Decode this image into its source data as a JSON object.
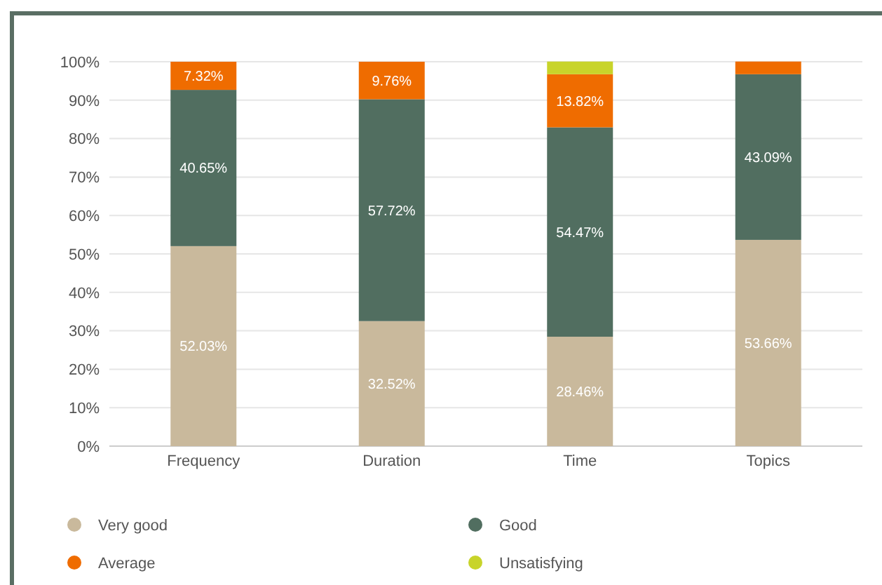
{
  "chart_data": {
    "type": "bar",
    "stacked": true,
    "categories": [
      "Frequency",
      "Duration",
      "Time",
      "Topics"
    ],
    "ylim": [
      0,
      100
    ],
    "yticks": [
      {
        "value": 0,
        "label": "0%"
      },
      {
        "value": 10,
        "label": "10%"
      },
      {
        "value": 20,
        "label": "20%"
      },
      {
        "value": 30,
        "label": "30%"
      },
      {
        "value": 40,
        "label": "40%"
      },
      {
        "value": 50,
        "label": "50%"
      },
      {
        "value": 60,
        "label": "60%"
      },
      {
        "value": 70,
        "label": "70%"
      },
      {
        "value": 80,
        "label": "80%"
      },
      {
        "value": 90,
        "label": "90%"
      },
      {
        "value": 100,
        "label": "100%"
      }
    ],
    "grid": "y",
    "legend": "bottom",
    "series": [
      {
        "name": "Very good",
        "color": "#c9b99c",
        "values": [
          52.03,
          32.52,
          28.46,
          53.66
        ],
        "value_labels": [
          "52.03%",
          "32.52%",
          "28.46%",
          "53.66%"
        ]
      },
      {
        "name": "Good",
        "color": "#516e60",
        "values": [
          40.65,
          57.72,
          54.47,
          43.09
        ],
        "value_labels": [
          "40.65%",
          "57.72%",
          "54.47%",
          "43.09%"
        ]
      },
      {
        "name": "Average",
        "color": "#ef6c00",
        "values": [
          7.32,
          9.76,
          13.82,
          3.3
        ],
        "value_labels": [
          "7.32%",
          "9.76%",
          "13.82%",
          null
        ]
      },
      {
        "name": "Unsatisfying",
        "color": "#c8d42a",
        "values": [
          0,
          0,
          3.3,
          0
        ],
        "value_labels": [
          null,
          null,
          null,
          null
        ]
      }
    ]
  }
}
